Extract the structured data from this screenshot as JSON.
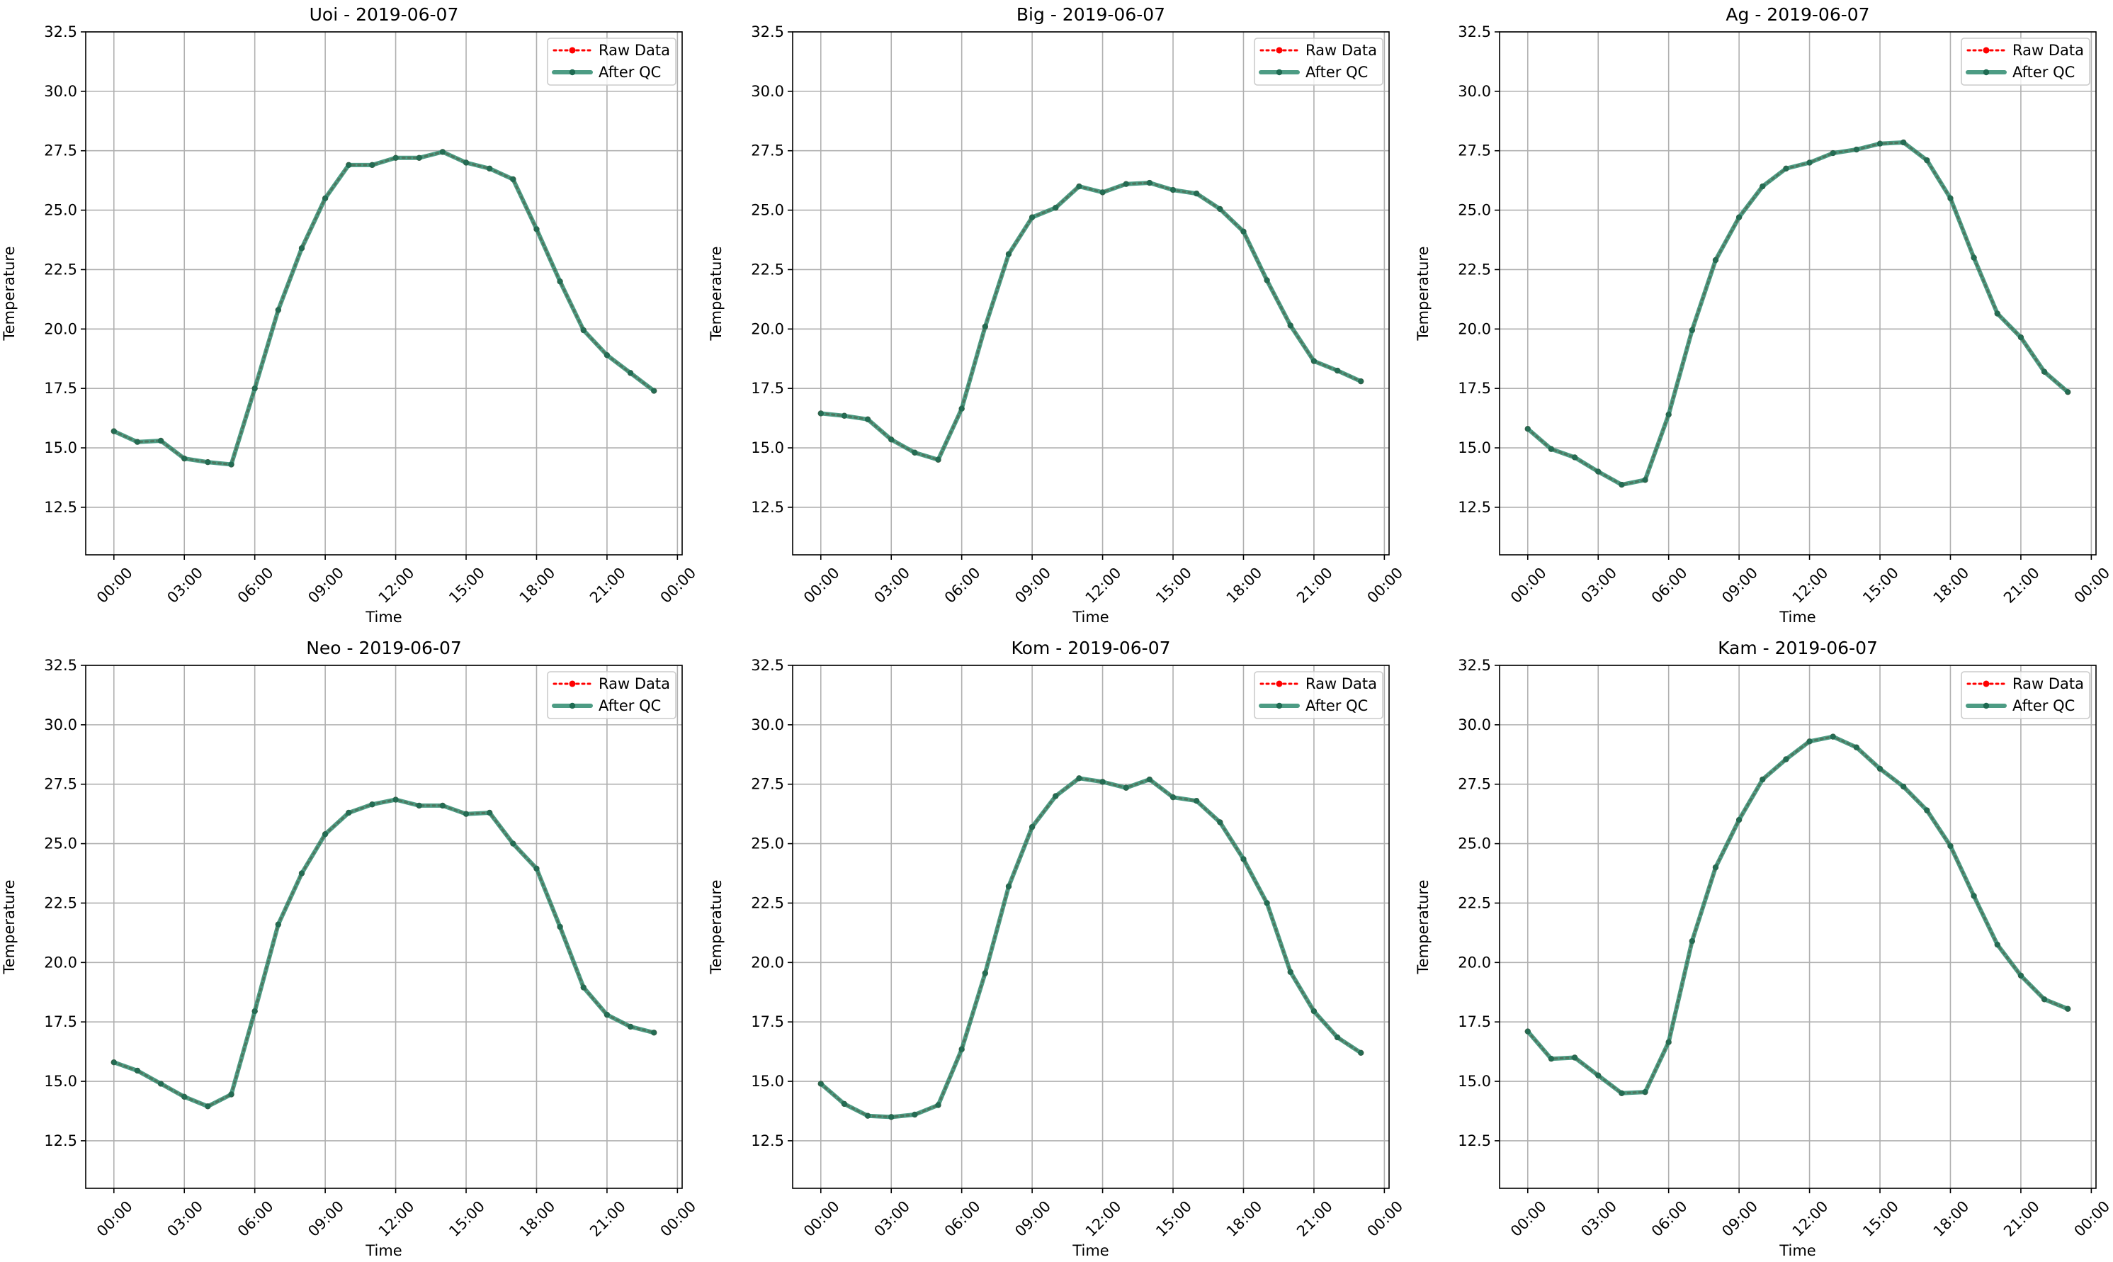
{
  "figure": {
    "background": "#ffffff"
  },
  "style": {
    "raw_color": "#ff0000",
    "qc_color": "#2e8b6e",
    "raw_marker_color": "#ff0000",
    "qc_marker_color": "#1f6b52",
    "grid_color": "#b0b0b0"
  },
  "chart_data": [
    {
      "type": "line",
      "title": "Uoi - 2019-06-07",
      "xlabel": "Time",
      "ylabel": "Temperature",
      "xlim": [
        -1.2,
        24.2
      ],
      "ylim": [
        10.5,
        32.5
      ],
      "xticks": [
        0,
        3,
        6,
        9,
        12,
        15,
        18,
        21,
        24
      ],
      "xtick_labels": [
        "00:00",
        "03:00",
        "06:00",
        "09:00",
        "12:00",
        "15:00",
        "18:00",
        "21:00",
        "00:00"
      ],
      "yticks": [
        12.5,
        15.0,
        17.5,
        20.0,
        22.5,
        25.0,
        27.5,
        30.0,
        32.5
      ],
      "ytick_labels": [
        "12.5",
        "15.0",
        "17.5",
        "20.0",
        "22.5",
        "25.0",
        "27.5",
        "30.0",
        "32.5"
      ],
      "grid": true,
      "legend": {
        "position": "top-right",
        "entries": [
          "Raw Data",
          "After QC"
        ]
      },
      "x": [
        0,
        1,
        2,
        3,
        4,
        5,
        6,
        7,
        8,
        9,
        10,
        11,
        12,
        13,
        14,
        15,
        16,
        17,
        18,
        19,
        20,
        21,
        22,
        23
      ],
      "series": [
        {
          "name": "Raw Data",
          "values": [
            15.7,
            15.25,
            15.3,
            14.55,
            14.4,
            14.3,
            17.5,
            20.8,
            23.4,
            25.5,
            26.9,
            26.9,
            27.2,
            27.2,
            27.45,
            27.0,
            26.75,
            26.3,
            24.2,
            22.0,
            19.95,
            18.9,
            18.15,
            17.4
          ]
        },
        {
          "name": "After QC",
          "values": [
            15.7,
            15.25,
            15.3,
            14.55,
            14.4,
            14.3,
            17.5,
            20.8,
            23.4,
            25.5,
            26.9,
            26.9,
            27.2,
            27.2,
            27.45,
            27.0,
            26.75,
            26.3,
            24.2,
            22.0,
            19.95,
            18.9,
            18.15,
            17.4
          ]
        }
      ]
    },
    {
      "type": "line",
      "title": "Big - 2019-06-07",
      "xlabel": "Time",
      "ylabel": "Temperature",
      "xlim": [
        -1.2,
        24.2
      ],
      "ylim": [
        10.5,
        32.5
      ],
      "xticks": [
        0,
        3,
        6,
        9,
        12,
        15,
        18,
        21,
        24
      ],
      "xtick_labels": [
        "00:00",
        "03:00",
        "06:00",
        "09:00",
        "12:00",
        "15:00",
        "18:00",
        "21:00",
        "00:00"
      ],
      "yticks": [
        12.5,
        15.0,
        17.5,
        20.0,
        22.5,
        25.0,
        27.5,
        30.0,
        32.5
      ],
      "ytick_labels": [
        "12.5",
        "15.0",
        "17.5",
        "20.0",
        "22.5",
        "25.0",
        "27.5",
        "30.0",
        "32.5"
      ],
      "grid": true,
      "legend": {
        "position": "top-right",
        "entries": [
          "Raw Data",
          "After QC"
        ]
      },
      "x": [
        0,
        1,
        2,
        3,
        4,
        5,
        6,
        7,
        8,
        9,
        10,
        11,
        12,
        13,
        14,
        15,
        16,
        17,
        18,
        19,
        20,
        21,
        22,
        23
      ],
      "series": [
        {
          "name": "Raw Data",
          "values": [
            16.45,
            16.35,
            16.2,
            15.35,
            14.8,
            14.5,
            16.65,
            20.1,
            23.15,
            24.7,
            25.1,
            26.0,
            25.75,
            26.1,
            26.15,
            25.85,
            25.7,
            25.05,
            24.1,
            22.05,
            20.15,
            18.65,
            18.25,
            17.8
          ]
        },
        {
          "name": "After QC",
          "values": [
            16.45,
            16.35,
            16.2,
            15.35,
            14.8,
            14.5,
            16.65,
            20.1,
            23.15,
            24.7,
            25.1,
            26.0,
            25.75,
            26.1,
            26.15,
            25.85,
            25.7,
            25.05,
            24.1,
            22.05,
            20.15,
            18.65,
            18.25,
            17.8
          ]
        }
      ]
    },
    {
      "type": "line",
      "title": "Ag - 2019-06-07",
      "xlabel": "Time",
      "ylabel": "Temperature",
      "xlim": [
        -1.2,
        24.2
      ],
      "ylim": [
        10.5,
        32.5
      ],
      "xticks": [
        0,
        3,
        6,
        9,
        12,
        15,
        18,
        21,
        24
      ],
      "xtick_labels": [
        "00:00",
        "03:00",
        "06:00",
        "09:00",
        "12:00",
        "15:00",
        "18:00",
        "21:00",
        "00:00"
      ],
      "yticks": [
        12.5,
        15.0,
        17.5,
        20.0,
        22.5,
        25.0,
        27.5,
        30.0,
        32.5
      ],
      "ytick_labels": [
        "12.5",
        "15.0",
        "17.5",
        "20.0",
        "22.5",
        "25.0",
        "27.5",
        "30.0",
        "32.5"
      ],
      "grid": true,
      "legend": {
        "position": "top-right",
        "entries": [
          "Raw Data",
          "After QC"
        ]
      },
      "x": [
        0,
        1,
        2,
        3,
        4,
        5,
        6,
        7,
        8,
        9,
        10,
        11,
        12,
        13,
        14,
        15,
        16,
        17,
        18,
        19,
        20,
        21,
        22,
        23
      ],
      "series": [
        {
          "name": "Raw Data",
          "values": [
            15.8,
            14.95,
            14.6,
            14.0,
            13.45,
            13.65,
            16.4,
            19.95,
            22.9,
            24.7,
            26.0,
            26.75,
            27.0,
            27.4,
            27.55,
            27.8,
            27.85,
            27.1,
            25.5,
            23.0,
            20.65,
            19.65,
            18.2,
            17.35
          ]
        },
        {
          "name": "After QC",
          "values": [
            15.8,
            14.95,
            14.6,
            14.0,
            13.45,
            13.65,
            16.4,
            19.95,
            22.9,
            24.7,
            26.0,
            26.75,
            27.0,
            27.4,
            27.55,
            27.8,
            27.85,
            27.1,
            25.5,
            23.0,
            20.65,
            19.65,
            18.2,
            17.35
          ]
        }
      ]
    },
    {
      "type": "line",
      "title": "Neo - 2019-06-07",
      "xlabel": "Time",
      "ylabel": "Temperature",
      "xlim": [
        -1.2,
        24.2
      ],
      "ylim": [
        10.5,
        32.5
      ],
      "xticks": [
        0,
        3,
        6,
        9,
        12,
        15,
        18,
        21,
        24
      ],
      "xtick_labels": [
        "00:00",
        "03:00",
        "06:00",
        "09:00",
        "12:00",
        "15:00",
        "18:00",
        "21:00",
        "00:00"
      ],
      "yticks": [
        12.5,
        15.0,
        17.5,
        20.0,
        22.5,
        25.0,
        27.5,
        30.0,
        32.5
      ],
      "ytick_labels": [
        "12.5",
        "15.0",
        "17.5",
        "20.0",
        "22.5",
        "25.0",
        "27.5",
        "30.0",
        "32.5"
      ],
      "grid": true,
      "legend": {
        "position": "top-right",
        "entries": [
          "Raw Data",
          "After QC"
        ]
      },
      "x": [
        0,
        1,
        2,
        3,
        4,
        5,
        6,
        7,
        8,
        9,
        10,
        11,
        12,
        13,
        14,
        15,
        16,
        17,
        18,
        19,
        20,
        21,
        22,
        23
      ],
      "series": [
        {
          "name": "Raw Data",
          "values": [
            15.8,
            15.45,
            14.9,
            14.35,
            13.95,
            14.45,
            17.95,
            21.6,
            23.75,
            25.4,
            26.3,
            26.65,
            26.85,
            26.6,
            26.6,
            26.25,
            26.3,
            25.0,
            23.95,
            21.5,
            18.95,
            17.8,
            17.3,
            17.05
          ]
        },
        {
          "name": "After QC",
          "values": [
            15.8,
            15.45,
            14.9,
            14.35,
            13.95,
            14.45,
            17.95,
            21.6,
            23.75,
            25.4,
            26.3,
            26.65,
            26.85,
            26.6,
            26.6,
            26.25,
            26.3,
            25.0,
            23.95,
            21.5,
            18.95,
            17.8,
            17.3,
            17.05
          ]
        }
      ]
    },
    {
      "type": "line",
      "title": "Kom - 2019-06-07",
      "xlabel": "Time",
      "ylabel": "Temperature",
      "xlim": [
        -1.2,
        24.2
      ],
      "ylim": [
        10.5,
        32.5
      ],
      "xticks": [
        0,
        3,
        6,
        9,
        12,
        15,
        18,
        21,
        24
      ],
      "xtick_labels": [
        "00:00",
        "03:00",
        "06:00",
        "09:00",
        "12:00",
        "15:00",
        "18:00",
        "21:00",
        "00:00"
      ],
      "yticks": [
        12.5,
        15.0,
        17.5,
        20.0,
        22.5,
        25.0,
        27.5,
        30.0,
        32.5
      ],
      "ytick_labels": [
        "12.5",
        "15.0",
        "17.5",
        "20.0",
        "22.5",
        "25.0",
        "27.5",
        "30.0",
        "32.5"
      ],
      "grid": true,
      "legend": {
        "position": "top-right",
        "entries": [
          "Raw Data",
          "After QC"
        ]
      },
      "x": [
        0,
        1,
        2,
        3,
        4,
        5,
        6,
        7,
        8,
        9,
        10,
        11,
        12,
        13,
        14,
        15,
        16,
        17,
        18,
        19,
        20,
        21,
        22,
        23
      ],
      "series": [
        {
          "name": "Raw Data",
          "values": [
            14.9,
            14.05,
            13.55,
            13.5,
            13.6,
            14.0,
            16.35,
            19.55,
            23.2,
            25.7,
            27.0,
            27.75,
            27.6,
            27.35,
            27.7,
            26.95,
            26.8,
            25.9,
            24.35,
            22.5,
            19.6,
            17.95,
            16.85,
            16.2
          ]
        },
        {
          "name": "After QC",
          "values": [
            14.9,
            14.05,
            13.55,
            13.5,
            13.6,
            14.0,
            16.35,
            19.55,
            23.2,
            25.7,
            27.0,
            27.75,
            27.6,
            27.35,
            27.7,
            26.95,
            26.8,
            25.9,
            24.35,
            22.5,
            19.6,
            17.95,
            16.85,
            16.2
          ]
        }
      ]
    },
    {
      "type": "line",
      "title": "Kam - 2019-06-07",
      "xlabel": "Time",
      "ylabel": "Temperature",
      "xlim": [
        -1.2,
        24.2
      ],
      "ylim": [
        10.5,
        32.5
      ],
      "xticks": [
        0,
        3,
        6,
        9,
        12,
        15,
        18,
        21,
        24
      ],
      "xtick_labels": [
        "00:00",
        "03:00",
        "06:00",
        "09:00",
        "12:00",
        "15:00",
        "18:00",
        "21:00",
        "00:00"
      ],
      "yticks": [
        12.5,
        15.0,
        17.5,
        20.0,
        22.5,
        25.0,
        27.5,
        30.0,
        32.5
      ],
      "ytick_labels": [
        "12.5",
        "15.0",
        "17.5",
        "20.0",
        "22.5",
        "25.0",
        "27.5",
        "30.0",
        "32.5"
      ],
      "grid": true,
      "legend": {
        "position": "top-right",
        "entries": [
          "Raw Data",
          "After QC"
        ]
      },
      "x": [
        0,
        1,
        2,
        3,
        4,
        5,
        6,
        7,
        8,
        9,
        10,
        11,
        12,
        13,
        14,
        15,
        16,
        17,
        18,
        19,
        20,
        21,
        22,
        23
      ],
      "series": [
        {
          "name": "Raw Data",
          "values": [
            17.1,
            15.95,
            16.0,
            15.25,
            14.5,
            14.55,
            16.65,
            20.9,
            24.0,
            26.0,
            27.7,
            28.55,
            29.3,
            29.5,
            29.05,
            28.15,
            27.4,
            26.4,
            24.9,
            22.8,
            20.75,
            19.45,
            18.45,
            18.05
          ]
        },
        {
          "name": "After QC",
          "values": [
            17.1,
            15.95,
            16.0,
            15.25,
            14.5,
            14.55,
            16.65,
            20.9,
            24.0,
            26.0,
            27.7,
            28.55,
            29.3,
            29.5,
            29.05,
            28.15,
            27.4,
            26.4,
            24.9,
            22.8,
            20.75,
            19.45,
            18.45,
            18.05
          ]
        }
      ]
    }
  ]
}
